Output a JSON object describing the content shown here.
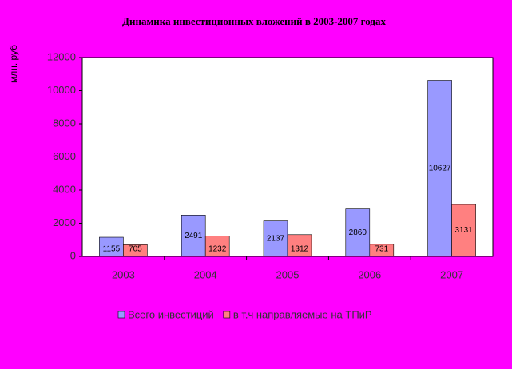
{
  "chart_data": {
    "type": "bar",
    "title": "Динамика инвестиционных вложений в 2003-2007 годах",
    "y_label": "млн. руб",
    "categories": [
      "2003",
      "2004",
      "2005",
      "2006",
      "2007"
    ],
    "series": [
      {
        "name": "Всего инвестиций",
        "color": "#9999ff",
        "values": [
          1155,
          2491,
          2137,
          2860,
          10627
        ]
      },
      {
        "name": "в т.ч направляемые на ТПиР",
        "color": "#ff8080",
        "values": [
          705,
          1232,
          1312,
          731,
          3131
        ]
      }
    ],
    "ylim": [
      0,
      12000
    ],
    "yticks": [
      0,
      2000,
      4000,
      6000,
      8000,
      10000,
      12000
    ],
    "legend": "bottom"
  }
}
